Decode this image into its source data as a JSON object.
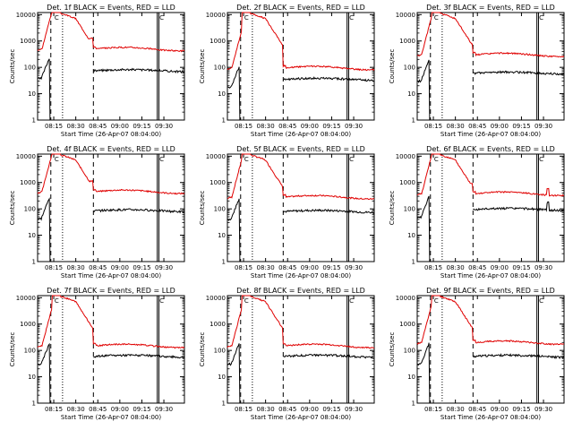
{
  "figure": {
    "label_y": "Counts/sec",
    "label_x": "Start Time (26-Apr-07 08:04:00)",
    "colors": {
      "events": "#000000",
      "lld": "#e00000",
      "axis": "#000000"
    }
  },
  "chart_data": [
    {
      "type": "line",
      "detector": "1f",
      "title": "Det. 1f BLACK = Events, RED = LLD",
      "x_ticks": [
        "08:15",
        "08:30",
        "08:45",
        "09:00",
        "09:15",
        "09:30"
      ],
      "y_ticks": [
        "1",
        "10",
        "100",
        "1000",
        "10000"
      ],
      "ylim": [
        1,
        12000
      ],
      "log_y": true,
      "ylabel": "Counts/sec",
      "xlabel": "Start Time (26-Apr-07 08:04:00)",
      "marker": "C",
      "plateau_events": 75,
      "plateau_lld": 500,
      "spike": false
    },
    {
      "type": "line",
      "detector": "2f",
      "title": "Det. 2f BLACK = Events, RED = LLD",
      "x_ticks": [
        "08:15",
        "08:30",
        "08:45",
        "09:00",
        "09:15",
        "09:30"
      ],
      "y_ticks": [
        "1",
        "10",
        "100",
        "1000",
        "10000"
      ],
      "ylim": [
        1,
        12000
      ],
      "log_y": true,
      "ylabel": "Counts/sec",
      "xlabel": "Start Time (26-Apr-07 08:04:00)",
      "marker": "C",
      "plateau_events": 35,
      "plateau_lld": 95,
      "spike": false
    },
    {
      "type": "line",
      "detector": "3f",
      "title": "Det. 3f BLACK = Events, RED = LLD",
      "x_ticks": [
        "08:15",
        "08:30",
        "08:45",
        "09:00",
        "09:15",
        "09:30"
      ],
      "y_ticks": [
        "1",
        "10",
        "100",
        "1000",
        "10000"
      ],
      "ylim": [
        1,
        12000
      ],
      "log_y": true,
      "ylabel": "Counts/sec",
      "xlabel": "Start Time (26-Apr-07 08:04:00)",
      "marker": "C",
      "plateau_events": 60,
      "plateau_lld": 300,
      "spike": false
    },
    {
      "type": "line",
      "detector": "4f",
      "title": "Det. 4f BLACK = Events, RED = LLD",
      "x_ticks": [
        "08:15",
        "08:30",
        "08:45",
        "09:00",
        "09:15",
        "09:30"
      ],
      "y_ticks": [
        "1",
        "10",
        "100",
        "1000",
        "10000"
      ],
      "ylim": [
        1,
        12000
      ],
      "log_y": true,
      "ylabel": "Counts/sec",
      "xlabel": "Start Time (26-Apr-07 08:04:00)",
      "marker": "C",
      "plateau_events": 85,
      "plateau_lld": 450,
      "spike": false
    },
    {
      "type": "line",
      "detector": "5f",
      "title": "Det. 5f BLACK = Events, RED = LLD",
      "x_ticks": [
        "08:15",
        "08:30",
        "08:45",
        "09:00",
        "09:15",
        "09:30"
      ],
      "y_ticks": [
        "1",
        "10",
        "100",
        "1000",
        "10000"
      ],
      "ylim": [
        1,
        12000
      ],
      "log_y": true,
      "ylabel": "Counts/sec",
      "xlabel": "Start Time (26-Apr-07 08:04:00)",
      "marker": "C",
      "plateau_events": 80,
      "plateau_lld": 280,
      "spike": false
    },
    {
      "type": "line",
      "detector": "6f",
      "title": "Det. 6f BLACK = Events, RED = LLD",
      "x_ticks": [
        "08:15",
        "08:30",
        "08:45",
        "09:00",
        "09:15",
        "09:30"
      ],
      "y_ticks": [
        "1",
        "10",
        "100",
        "1000",
        "10000"
      ],
      "ylim": [
        1,
        12000
      ],
      "log_y": true,
      "ylabel": "Counts/sec",
      "xlabel": "Start Time (26-Apr-07 08:04:00)",
      "marker": "C",
      "plateau_events": 95,
      "plateau_lld": 380,
      "spike": true
    },
    {
      "type": "line",
      "detector": "7f",
      "title": "Det. 7f BLACK = Events, RED = LLD",
      "x_ticks": [
        "08:15",
        "08:30",
        "08:45",
        "09:00",
        "09:15",
        "09:30"
      ],
      "y_ticks": [
        "1",
        "10",
        "100",
        "1000",
        "10000"
      ],
      "ylim": [
        1,
        12000
      ],
      "log_y": true,
      "ylabel": "Counts/sec",
      "xlabel": "Start Time (26-Apr-07 08:04:00)",
      "marker": "C",
      "plateau_events": 60,
      "plateau_lld": 150,
      "spike": false
    },
    {
      "type": "line",
      "detector": "8f",
      "title": "Det. 8f BLACK = Events, RED = LLD",
      "x_ticks": [
        "08:15",
        "08:30",
        "08:45",
        "09:00",
        "09:15",
        "09:30"
      ],
      "y_ticks": [
        "1",
        "10",
        "100",
        "1000",
        "10000"
      ],
      "ylim": [
        1,
        12000
      ],
      "log_y": true,
      "ylabel": "Counts/sec",
      "xlabel": "Start Time (26-Apr-07 08:04:00)",
      "marker": "C",
      "plateau_events": 60,
      "plateau_lld": 150,
      "spike": false
    },
    {
      "type": "line",
      "detector": "9f",
      "title": "Det. 9f BLACK = Events, RED = LLD",
      "x_ticks": [
        "08:15",
        "08:30",
        "08:45",
        "09:00",
        "09:15",
        "09:30"
      ],
      "y_ticks": [
        "1",
        "10",
        "100",
        "1000",
        "10000"
      ],
      "ylim": [
        1,
        12000
      ],
      "log_y": true,
      "ylabel": "Counts/sec",
      "xlabel": "Start Time (26-Apr-07 08:04:00)",
      "marker": "C",
      "plateau_events": 60,
      "plateau_lld": 200,
      "spike": false
    }
  ]
}
